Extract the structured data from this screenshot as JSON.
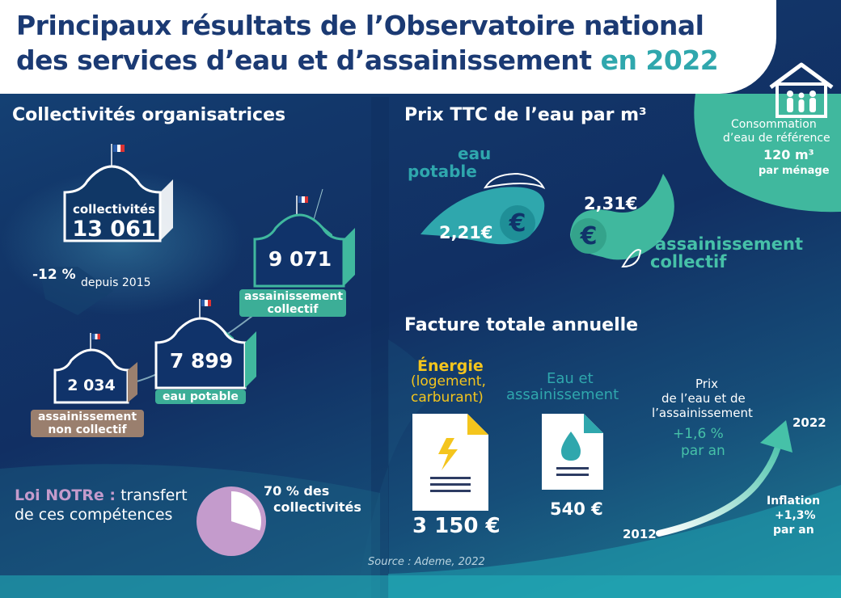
{
  "title": {
    "line1": "Principaux résultats de l’Observatoire national",
    "line2_main": "des services d’eau et d’assainissement",
    "line2_accent": "en 2022"
  },
  "collectivites": {
    "heading": "Collectivités organisatrices",
    "total_label": "collectivités",
    "total_value": "13 061",
    "change_value": "-12 %",
    "change_since": "depuis 2015",
    "assainissement_collectif_value": "9 071",
    "assainissement_collectif_label1": "assainissement",
    "assainissement_collectif_label2": "collectif",
    "eau_potable_value": "7 899",
    "eau_potable_label": "eau potable",
    "non_collectif_value": "2 034",
    "non_collectif_label1": "assainissement",
    "non_collectif_label2": "non collectif"
  },
  "loi_notre": {
    "name": "Loi NOTRe :",
    "text1": "transfert",
    "text2": "de ces compétences",
    "pct_value": "70 % des",
    "pct_label": "collectivités",
    "fraction": 0.7
  },
  "prix": {
    "heading": "Prix TTC de l’eau par m³",
    "eau_label1": "eau",
    "eau_label2": "potable",
    "eau_value": "2,21€",
    "ass_value": "2,31€",
    "ass_label1": "assainissement",
    "ass_label2": "collectif"
  },
  "consommation": {
    "label1": "Consommation",
    "label2": "d’eau de référence",
    "value": "120 m³",
    "unit": "par ménage"
  },
  "facture": {
    "heading": "Facture totale annuelle",
    "energie_title": "Énergie",
    "energie_sub1": "(logement,",
    "energie_sub2": "carburant)",
    "energie_value": "3 150 €",
    "eau_title1": "Eau et",
    "eau_title2": "assainissement",
    "eau_value": "540 €",
    "prix_label1": "Prix",
    "prix_label2": "de l’eau et de",
    "prix_label3": "l’assainissement",
    "prix_rate1": "+1,6 %",
    "prix_rate2": "par an",
    "year_end": "2022",
    "year_start": "2012",
    "inflation1": "Inflation",
    "inflation2": "+1,3%",
    "inflation3": "par an"
  },
  "source": "Source : Ademe, 2022",
  "colors": {
    "navy": "#1b3a73",
    "teal": "#2fa7ad",
    "green": "#46c1a8",
    "brown": "#9a7f6e",
    "yellow": "#f4c51d",
    "lavender": "#c49bcc"
  }
}
